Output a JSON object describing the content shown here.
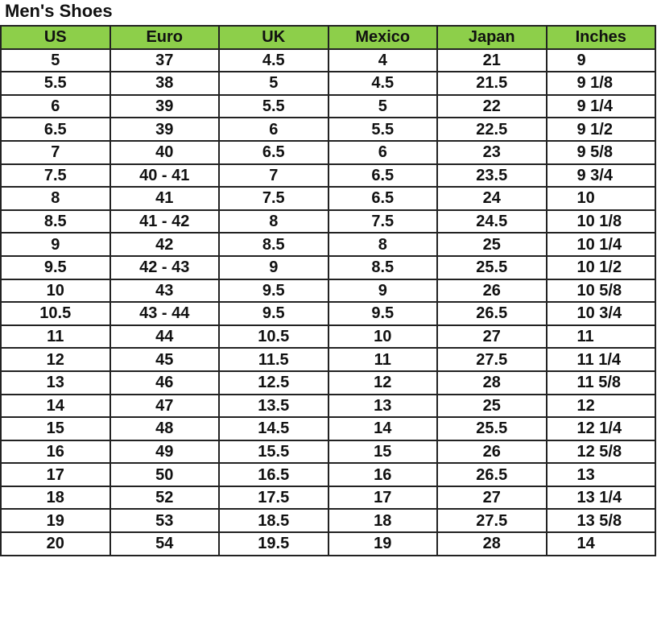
{
  "title": "Men's Shoes",
  "headers": [
    "US",
    "Euro",
    "UK",
    "Mexico",
    "Japan",
    "Inches"
  ],
  "header_color": "#8dcf4a",
  "rows": [
    [
      "5",
      "37",
      "4.5",
      "4",
      "21",
      "9"
    ],
    [
      "5.5",
      "38",
      "5",
      "4.5",
      "21.5",
      "9 1/8"
    ],
    [
      "6",
      "39",
      "5.5",
      "5",
      "22",
      "9 1/4"
    ],
    [
      "6.5",
      "39",
      "6",
      "5.5",
      "22.5",
      "9 1/2"
    ],
    [
      "7",
      "40",
      "6.5",
      "6",
      "23",
      "9 5/8"
    ],
    [
      "7.5",
      "40 - 41",
      "7",
      "6.5",
      "23.5",
      "9 3/4"
    ],
    [
      "8",
      "41",
      "7.5",
      "6.5",
      "24",
      "10"
    ],
    [
      "8.5",
      "41 - 42",
      "8",
      "7.5",
      "24.5",
      "10 1/8"
    ],
    [
      "9",
      "42",
      "8.5",
      "8",
      "25",
      "10 1/4"
    ],
    [
      "9.5",
      "42 - 43",
      "9",
      "8.5",
      "25.5",
      "10 1/2"
    ],
    [
      "10",
      "43",
      "9.5",
      "9",
      "26",
      "10 5/8"
    ],
    [
      "10.5",
      "43 - 44",
      "9.5",
      "9.5",
      "26.5",
      "10 3/4"
    ],
    [
      "11",
      "44",
      "10.5",
      "10",
      "27",
      "11"
    ],
    [
      "12",
      "45",
      "11.5",
      "11",
      "27.5",
      "11 1/4"
    ],
    [
      "13",
      "46",
      "12.5",
      "12",
      "28",
      "11 5/8"
    ],
    [
      "14",
      "47",
      "13.5",
      "13",
      "25",
      "12"
    ],
    [
      "15",
      "48",
      "14.5",
      "14",
      "25.5",
      "12 1/4"
    ],
    [
      "16",
      "49",
      "15.5",
      "15",
      "26",
      "12 5/8"
    ],
    [
      "17",
      "50",
      "16.5",
      "16",
      "26.5",
      "13"
    ],
    [
      "18",
      "52",
      "17.5",
      "17",
      "27",
      "13 1/4"
    ],
    [
      "19",
      "53",
      "18.5",
      "18",
      "27.5",
      "13 5/8"
    ],
    [
      "20",
      "54",
      "19.5",
      "19",
      "28",
      "14"
    ]
  ]
}
